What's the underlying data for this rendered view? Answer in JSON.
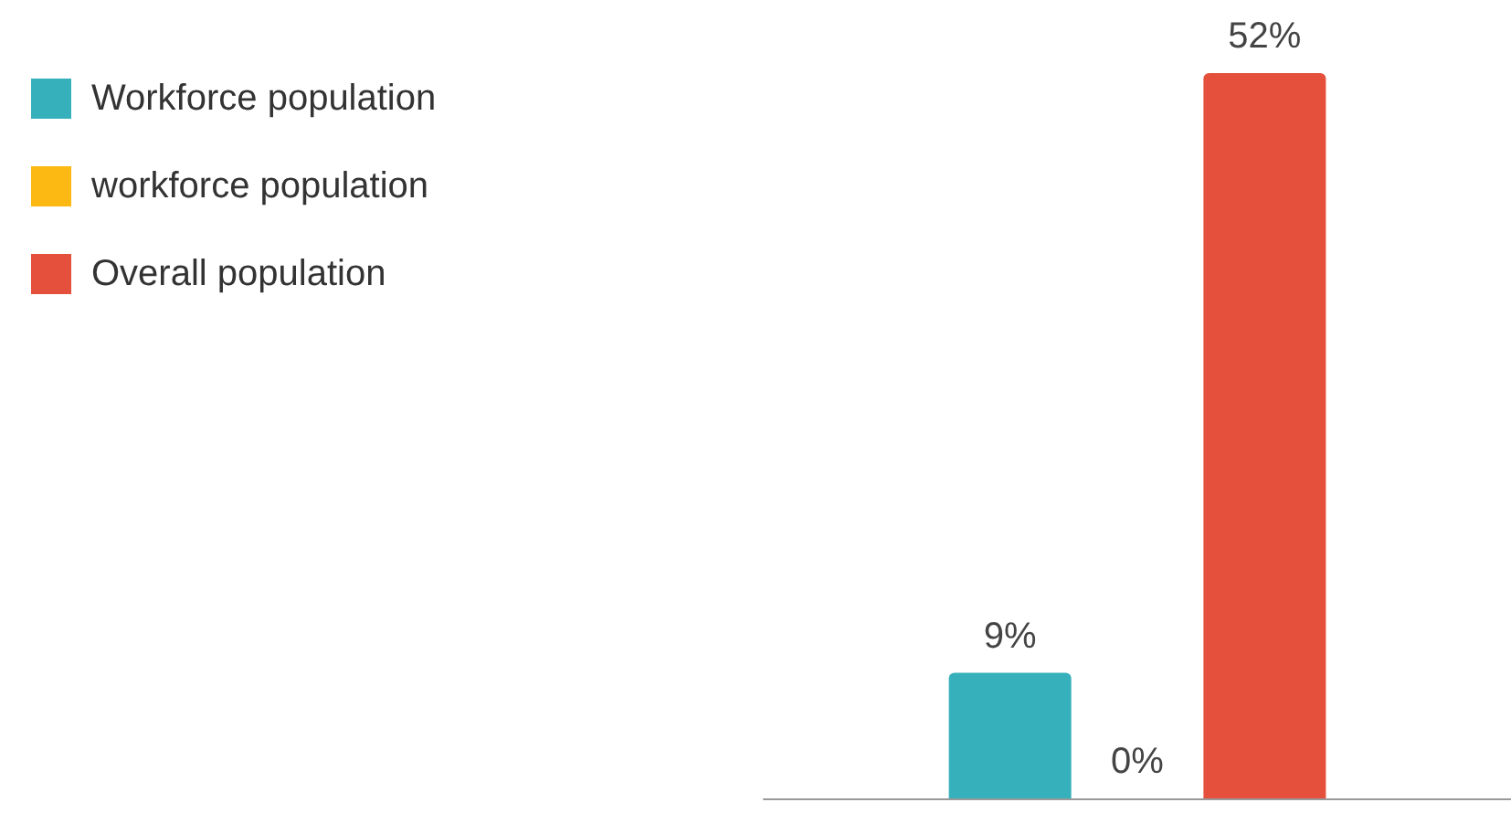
{
  "chart_data": {
    "type": "bar",
    "categories": [
      null
    ],
    "series": [
      {
        "name": "Workforce population",
        "color": "#36b0bb",
        "values": [
          9
        ],
        "value_labels": [
          "9%"
        ]
      },
      {
        "name": "workforce population",
        "color": "#fdb913",
        "values": [
          0
        ],
        "value_labels": [
          "0%"
        ]
      },
      {
        "name": "Overall population",
        "color": "#e5503c",
        "values": [
          52
        ],
        "value_labels": [
          "52%"
        ]
      }
    ],
    "legend": "top left"
  }
}
